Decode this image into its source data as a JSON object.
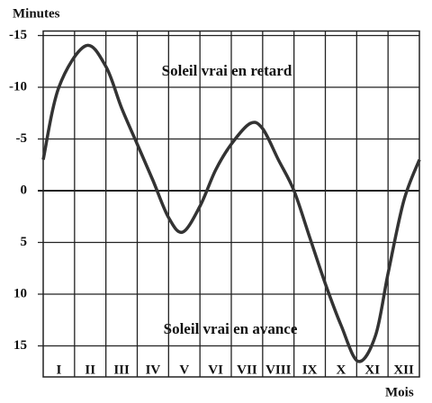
{
  "chart_data": {
    "type": "line",
    "y_label": "Minutes",
    "x_label": "Mois",
    "annotations": [
      "Soleil vrai en retard",
      "Soleil vrai en avance"
    ],
    "categories": [
      "I",
      "II",
      "III",
      "IV",
      "V",
      "VI",
      "VII",
      "VIII",
      "IX",
      "X",
      "XI",
      "XII"
    ],
    "x": [
      0,
      0.5,
      1.35,
      2,
      2.5,
      3,
      3.5,
      4,
      4.45,
      5,
      5.5,
      6,
      6.6,
      7,
      7.5,
      8,
      8.5,
      9,
      9.5,
      10.05,
      10.6,
      11,
      11.5,
      12
    ],
    "values": [
      -3,
      -10,
      -14,
      -12,
      -8,
      -4.5,
      -1,
      2.6,
      4,
      1.5,
      -2,
      -4.5,
      -6.5,
      -6,
      -3,
      0,
      4.5,
      9,
      13,
      16.5,
      14,
      8,
      1,
      -3
    ],
    "color": "#333333",
    "xlim": [
      0,
      12
    ],
    "ylim": [
      18,
      -15
    ],
    "yticks": [
      -15,
      -10,
      -5,
      0,
      5,
      10,
      15
    ],
    "grid": true
  }
}
